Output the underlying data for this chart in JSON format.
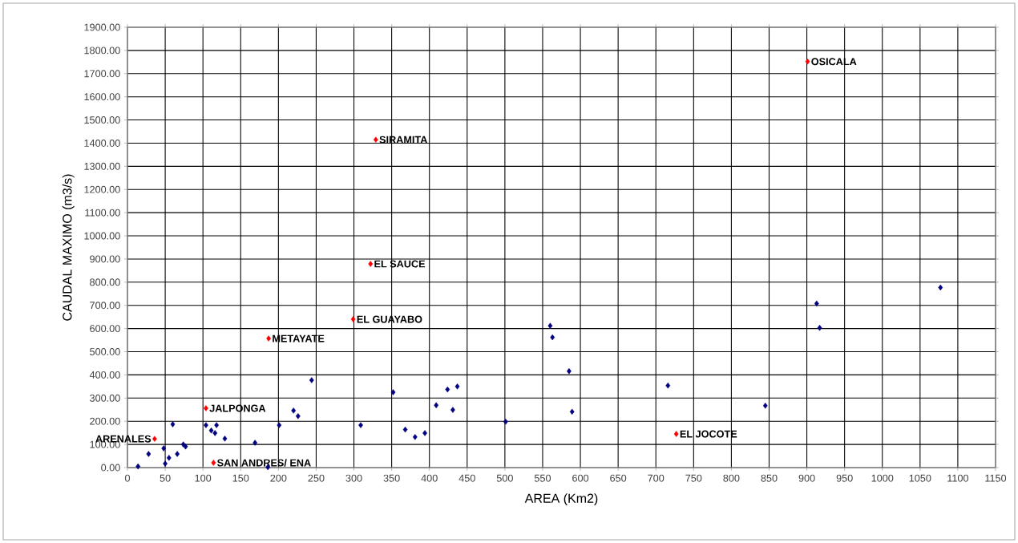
{
  "chart_data": {
    "type": "scatter",
    "xlabel": "AREA (Km2)",
    "ylabel": "CAUDAL MAXIMO (m3/s)",
    "xlim": [
      0,
      1150
    ],
    "ylim": [
      0,
      1900
    ],
    "xticks": [
      0,
      50,
      100,
      150,
      200,
      250,
      300,
      350,
      400,
      450,
      500,
      550,
      600,
      650,
      700,
      750,
      800,
      850,
      900,
      950,
      1000,
      1050,
      1100,
      1150
    ],
    "yticks": [
      {
        "value": 0,
        "label": "0.00"
      },
      {
        "value": 100,
        "label": "100.00"
      },
      {
        "value": 200,
        "label": "200.00"
      },
      {
        "value": 300,
        "label": "300.00"
      },
      {
        "value": 400,
        "label": "400.00"
      },
      {
        "value": 500,
        "label": "500.00"
      },
      {
        "value": 600,
        "label": "600.00"
      },
      {
        "value": 700,
        "label": "700.00"
      },
      {
        "value": 800,
        "label": "800.00"
      },
      {
        "value": 900,
        "label": "900.00"
      },
      {
        "value": 1000,
        "label": "1000.00"
      },
      {
        "value": 1100,
        "label": "1100.00"
      },
      {
        "value": 1200,
        "label": "1200.00"
      },
      {
        "value": 1300,
        "label": "1300.00"
      },
      {
        "value": 1400,
        "label": "1400.00"
      },
      {
        "value": 1500,
        "label": "1500.00"
      },
      {
        "value": 1600,
        "label": "1600.00"
      },
      {
        "value": 1700,
        "label": "1700.00"
      },
      {
        "value": 1800,
        "label": "1800.00"
      },
      {
        "value": 1900,
        "label": "1900.00"
      }
    ],
    "grid": true,
    "marker": "diamond",
    "series": [
      {
        "color": "#000080",
        "x": [
          14,
          28,
          48,
          50,
          55,
          60,
          66,
          74,
          77,
          104,
          111,
          116,
          118,
          129,
          169,
          186,
          201,
          220,
          226,
          244,
          309,
          352,
          368,
          381,
          394,
          409,
          424,
          431,
          437,
          501,
          560,
          563,
          585,
          589,
          716,
          845,
          913,
          917,
          1077
        ],
        "values": [
          5,
          59,
          83,
          17,
          42,
          187,
          59,
          100,
          91,
          183,
          160,
          149,
          183,
          125,
          107,
          2,
          183,
          246,
          222,
          377,
          183,
          325,
          164,
          132,
          149,
          269,
          337,
          249,
          350,
          198,
          612,
          562,
          416,
          241,
          354,
          267,
          708,
          603,
          777
        ]
      },
      {
        "color": "#ff0000",
        "x": [
          36,
          104,
          114,
          187,
          299,
          322,
          329,
          727,
          901
        ],
        "values": [
          124,
          256,
          21,
          557,
          640,
          879,
          1415,
          145,
          1752
        ]
      }
    ],
    "annotations": [
      {
        "text": "ARENALES",
        "x": 36,
        "y": 124
      },
      {
        "text": "JALPONGA",
        "x": 104,
        "y": 256
      },
      {
        "text": "SAN ANDRES/ ENA",
        "x": 114,
        "y": 21
      },
      {
        "text": "METAYATE",
        "x": 187,
        "y": 557
      },
      {
        "text": "EL GUAYABO",
        "x": 299,
        "y": 640
      },
      {
        "text": "EL SAUCE",
        "x": 322,
        "y": 879
      },
      {
        "text": "SIRAMITA",
        "x": 329,
        "y": 1415
      },
      {
        "text": "EL JOCOTE",
        "x": 727,
        "y": 145
      },
      {
        "text": "OSICALA",
        "x": 901,
        "y": 1752
      }
    ]
  }
}
